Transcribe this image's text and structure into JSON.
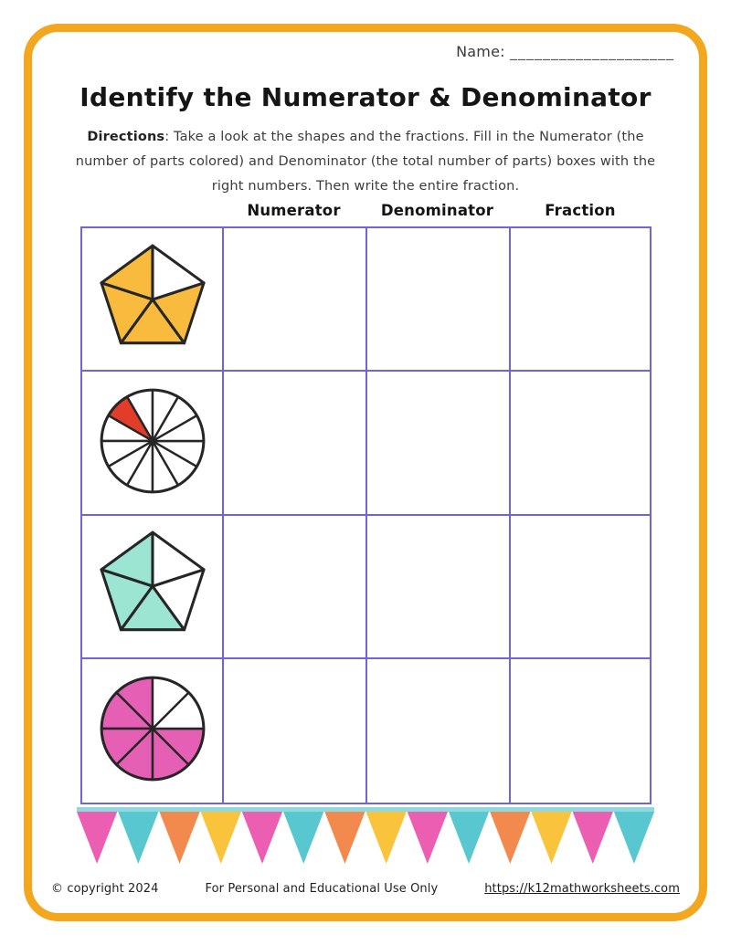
{
  "page_border_color": "#F2A71E",
  "header": {
    "name_label": "Name:",
    "name_line": "____________________"
  },
  "title": "Identify the Numerator & Denominator",
  "directions": {
    "label": "Directions",
    "text": ": Take a look at the shapes and the fractions. Fill in the Numerator (the number of parts colored) and Denominator (the total number of parts) boxes with the right numbers. Then write the entire fraction."
  },
  "table": {
    "grid_color": "#6F63DE",
    "column_headers": [
      "Numerator",
      "Denominator",
      "Fraction"
    ],
    "shape_stroke_color": "#262626",
    "rows": [
      {
        "shape": "pentagon",
        "total_parts": 5,
        "colored_parts": 4,
        "fill_color": "#F9BB3D",
        "colored_sectors": [
          0,
          1,
          2,
          3
        ]
      },
      {
        "shape": "circle",
        "total_parts": 12,
        "colored_parts": 1,
        "fill_color": "#E23C2A",
        "colored_sectors": [
          1
        ]
      },
      {
        "shape": "pentagon",
        "total_parts": 5,
        "colored_parts": 3,
        "fill_color": "#9BE5D2",
        "colored_sectors": [
          0,
          1,
          2
        ]
      },
      {
        "shape": "circle",
        "total_parts": 8,
        "colored_parts": 6,
        "fill_color": "#E55FB5",
        "colored_sectors": [
          0,
          1,
          2,
          3,
          4,
          5
        ]
      }
    ]
  },
  "bunting": {
    "strip_color": "#8FD9DE",
    "flag_count": 14,
    "colors": [
      "#EC5EB2",
      "#59C7CF",
      "#F28A4E",
      "#F9C33C"
    ]
  },
  "footer": {
    "copyright": "© copyright 2024",
    "usage": "For Personal and Educational Use Only",
    "link": "https://k12mathworksheets.com"
  }
}
